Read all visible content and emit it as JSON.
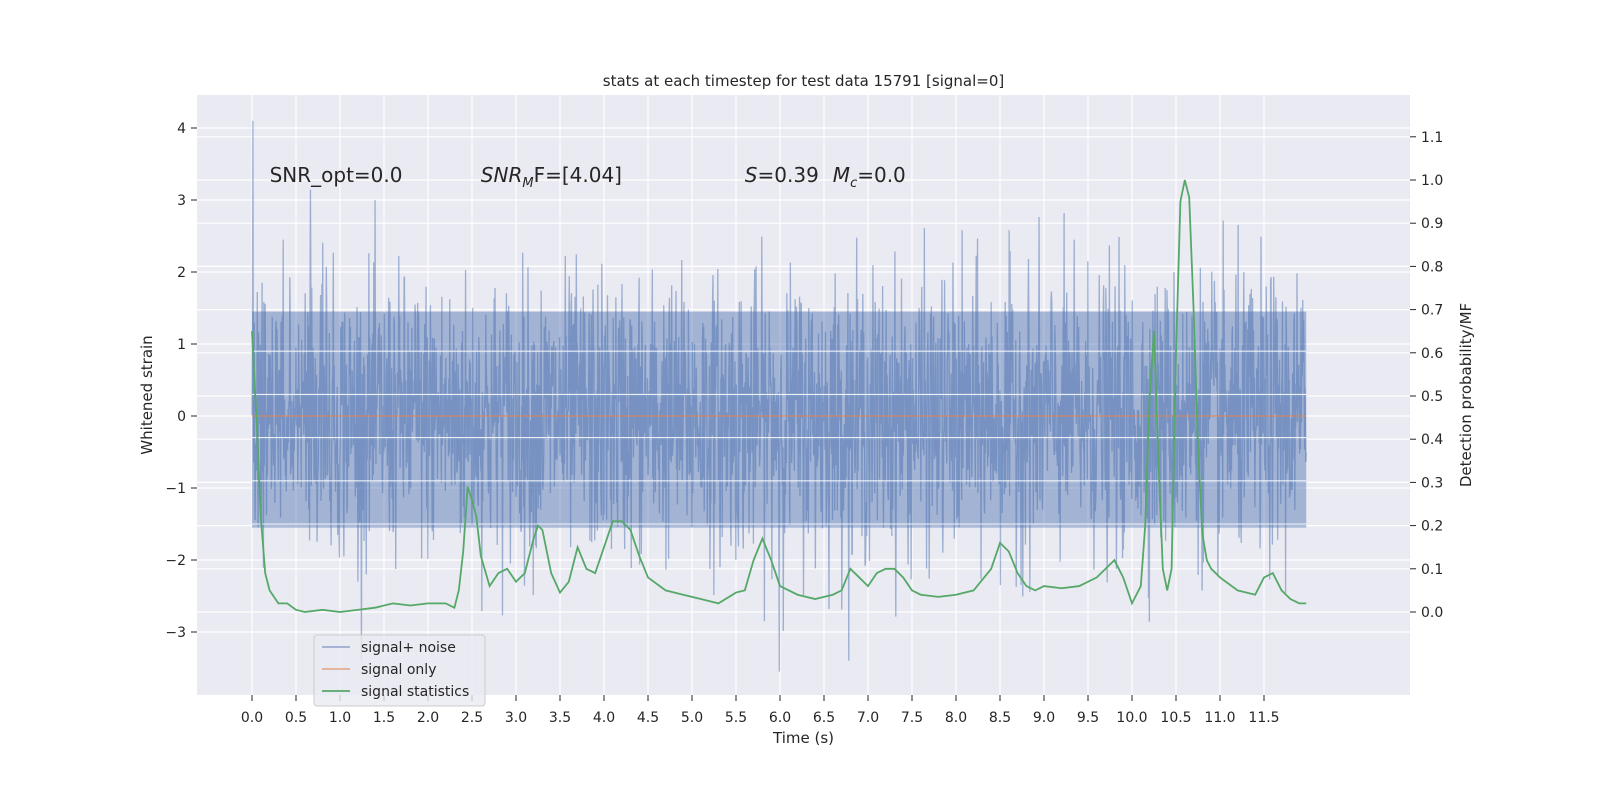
{
  "chart_data": {
    "type": "line",
    "title": "stats at each timestep for test data 15791 [signal=0]",
    "xlabel": "Time (s)",
    "ylabel": "Whitened strain",
    "y2label": "Detection probability/MF",
    "xlim": [
      -0.6,
      12.6
    ],
    "ylim": [
      -3.9,
      4.4
    ],
    "y2lim": [
      -0.12,
      1.19
    ],
    "x_ticks": [
      0.0,
      0.5,
      1.0,
      1.5,
      2.0,
      2.5,
      3.0,
      3.5,
      4.0,
      4.5,
      5.0,
      5.5,
      6.0,
      6.5,
      7.0,
      7.5,
      8.0,
      8.5,
      9.0,
      9.5,
      10.0,
      10.5,
      11.0,
      11.5
    ],
    "x_tick_labels": [
      "0.0",
      "0.5",
      "1.0",
      "1.5",
      "2.0",
      "2.5",
      "3.0",
      "3.5",
      "4.0",
      "4.5",
      "5.0",
      "5.5",
      "6.0",
      "6.5",
      "7.0",
      "7.5",
      "8.0",
      "8.5",
      "9.0",
      "9.5",
      "10.0",
      "10.5",
      "11.0",
      "11.5"
    ],
    "y_ticks": [
      -3,
      -2,
      -1,
      0,
      1,
      2,
      3,
      4
    ],
    "y_tick_labels": [
      "−3",
      "−2",
      "−1",
      "0",
      "1",
      "2",
      "3",
      "4"
    ],
    "y2_ticks": [
      0.0,
      0.1,
      0.2,
      0.3,
      0.4,
      0.5,
      0.6,
      0.7,
      0.8,
      0.9,
      1.0,
      1.1
    ],
    "y2_tick_labels": [
      "0.0",
      "0.1",
      "0.2",
      "0.3",
      "0.4",
      "0.5",
      "0.6",
      "0.7",
      "0.8",
      "0.9",
      "1.0",
      "1.1"
    ],
    "grid": true,
    "legend_position": "bottom-left",
    "series": [
      {
        "name": "signal+ noise",
        "axis": "left",
        "color": "#4c72b0",
        "x_range": [
          0.0,
          11.98
        ],
        "core_band": [
          -1.55,
          1.45
        ],
        "peak_max": 4.1,
        "trough_min": -3.55,
        "note_values": "dense noise trace, approximately Gaussian with std ~0.9"
      },
      {
        "name": "signal only",
        "axis": "left",
        "color": "#dd8452",
        "x": [
          0.0,
          11.98
        ],
        "y": [
          0.0,
          0.0
        ]
      },
      {
        "name": "signal statistics",
        "axis": "right",
        "color": "#55a868",
        "x": [
          0.0,
          0.05,
          0.1,
          0.15,
          0.2,
          0.3,
          0.4,
          0.5,
          0.6,
          0.8,
          1.0,
          1.2,
          1.4,
          1.6,
          1.8,
          2.0,
          2.2,
          2.3,
          2.35,
          2.4,
          2.45,
          2.5,
          2.55,
          2.6,
          2.7,
          2.8,
          2.9,
          3.0,
          3.1,
          3.2,
          3.25,
          3.3,
          3.4,
          3.5,
          3.6,
          3.7,
          3.8,
          3.9,
          4.0,
          4.1,
          4.2,
          4.3,
          4.4,
          4.5,
          4.7,
          4.9,
          5.1,
          5.3,
          5.5,
          5.6,
          5.7,
          5.8,
          5.9,
          6.0,
          6.2,
          6.4,
          6.5,
          6.6,
          6.7,
          6.8,
          6.9,
          7.0,
          7.1,
          7.2,
          7.3,
          7.4,
          7.5,
          7.6,
          7.8,
          8.0,
          8.2,
          8.4,
          8.5,
          8.6,
          8.7,
          8.8,
          8.9,
          9.0,
          9.2,
          9.4,
          9.6,
          9.8,
          9.9,
          10.0,
          10.1,
          10.15,
          10.2,
          10.25,
          10.3,
          10.35,
          10.4,
          10.45,
          10.5,
          10.55,
          10.6,
          10.65,
          10.7,
          10.75,
          10.8,
          10.85,
          10.9,
          11.0,
          11.2,
          11.4,
          11.5,
          11.6,
          11.7,
          11.8,
          11.9,
          11.98
        ],
        "y": [
          0.65,
          0.45,
          0.22,
          0.09,
          0.05,
          0.02,
          0.02,
          0.005,
          0.0,
          0.005,
          0.0,
          0.005,
          0.01,
          0.02,
          0.015,
          0.02,
          0.02,
          0.01,
          0.05,
          0.14,
          0.29,
          0.26,
          0.22,
          0.13,
          0.06,
          0.09,
          0.1,
          0.07,
          0.09,
          0.17,
          0.2,
          0.19,
          0.09,
          0.045,
          0.07,
          0.15,
          0.1,
          0.09,
          0.15,
          0.21,
          0.21,
          0.19,
          0.13,
          0.08,
          0.05,
          0.04,
          0.03,
          0.02,
          0.045,
          0.05,
          0.12,
          0.17,
          0.12,
          0.06,
          0.04,
          0.03,
          0.035,
          0.04,
          0.05,
          0.1,
          0.08,
          0.06,
          0.09,
          0.1,
          0.1,
          0.08,
          0.05,
          0.04,
          0.035,
          0.04,
          0.05,
          0.1,
          0.16,
          0.14,
          0.09,
          0.06,
          0.05,
          0.06,
          0.055,
          0.06,
          0.08,
          0.12,
          0.08,
          0.02,
          0.06,
          0.2,
          0.5,
          0.65,
          0.35,
          0.1,
          0.05,
          0.1,
          0.6,
          0.95,
          1.0,
          0.96,
          0.7,
          0.38,
          0.18,
          0.12,
          0.1,
          0.08,
          0.05,
          0.04,
          0.08,
          0.09,
          0.05,
          0.03,
          0.02,
          0.02
        ]
      }
    ],
    "annotations": [
      {
        "text_plain": "SNR_opt=0.0",
        "x": 0.2,
        "y": 3.35
      },
      {
        "text_prefix": "SNR",
        "text_sub": "M",
        "text_suffix": "F=[4.04]",
        "x": 2.6,
        "y": 3.35
      },
      {
        "text_prefix": "S",
        "text_suffix": "=0.39",
        "x": 5.6,
        "y": 3.35
      },
      {
        "text_prefix": "M",
        "text_sub": "c",
        "text_suffix": "=0.0",
        "x": 6.6,
        "y": 3.35
      }
    ]
  }
}
